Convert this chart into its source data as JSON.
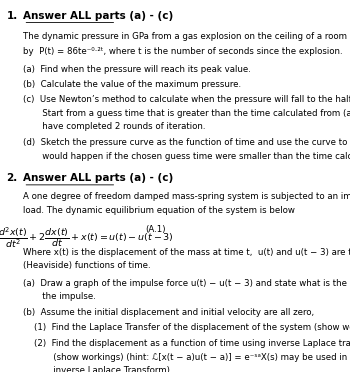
{
  "bg_color": "#ffffff",
  "text_color": "#000000",
  "figsize": [
    3.5,
    3.72
  ],
  "dpi": 100,
  "q1_number": "1.",
  "q1_heading": "Answer ALL parts (a) - (c)",
  "q1_intro1": "The dynamic pressure in GPa from a gas explosion on the ceiling of a room can be estimated",
  "q1_intro2": "by  P(t) = 86te⁻⁰·²ᵗ, where t is the number of seconds since the explosion.",
  "q1_a": "(a)  Find when the pressure will reach its peak value.",
  "q1_b": "(b)  Calculate the value of the maximum pressure.",
  "q1_c1": "(c)  Use Newton’s method to calculate when the pressure will fall to the half of the peak value.",
  "q1_c2": "       Start from a guess time that is greater than the time calculated from (a) and stop after you",
  "q1_c3": "       have completed 2 rounds of iteration.",
  "q1_d1": "(d)  Sketch the pressure curve as the function of time and use the curve to explain what",
  "q1_d2": "       would happen if the chosen guess time were smaller than the time calculated from (a).",
  "q2_number": "2.",
  "q2_heading": "Answer ALL parts (a) - (c)",
  "q2_intro1": "A one degree of freedom damped mass-spring system is subjected to an impulse",
  "q2_intro2": "load. The dynamic equilibrium equation of the system is below",
  "q2_eq_label": "(A.1)",
  "q2_where1": "Where x(t) is the displacement of the mass at time t,  u(t) and u(t − 3) are two step",
  "q2_where2": "(Heaviside) functions of time.",
  "q2_a1": "(a)  Draw a graph of the impulse force u(t) − u(t − 3) and state what is the duration of",
  "q2_a2": "       the impulse.",
  "q2_b": "(b)  Assume the initial displacement and initial velocity are all zero,",
  "q2_b1": "    (1)  Find the Laplace Transfer of the displacement of the system (show workings)",
  "q2_b2_1": "    (2)  Find the displacement as a function of time using inverse Laplace transform",
  "q2_b2_2": "           (show workings) (hint: ℒ[x(t − a)u(t − a)] = e⁻ˢᵃX(s) may be used in the",
  "q2_b2_3": "           inverse Laplace Transform)"
}
